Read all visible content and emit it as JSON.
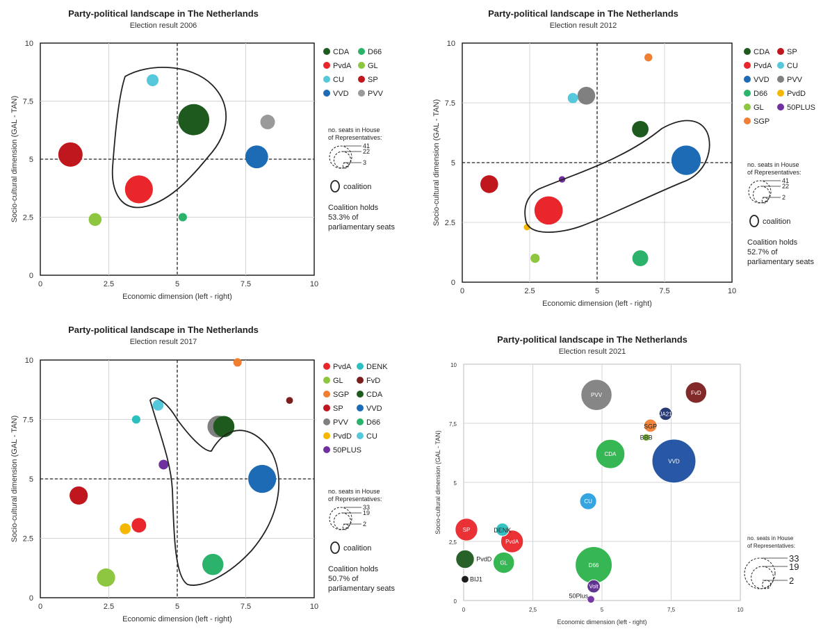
{
  "chart_data": [
    {
      "type": "scatter",
      "title": "Party-political landscape in The Netherlands",
      "subtitle": "Election result 2006",
      "xlabel": "Economic dimension (left - right)",
      "ylabel": "Socio-cultural dimension (GAL - TAN)",
      "xlim": [
        0,
        10
      ],
      "ylim": [
        0,
        10
      ],
      "xticks": [
        "0",
        "2.5",
        "5",
        "7.5",
        "10"
      ],
      "yticks": [
        "0",
        "2.5",
        "5",
        "7.5",
        "10"
      ],
      "grid": true,
      "legend_position": "right",
      "legend": [
        "CDA",
        "D66",
        "PvdA",
        "GL",
        "CU",
        "SP",
        "VVD",
        "PVV"
      ],
      "size_legend_title_1": "no. seats in House",
      "size_legend_title_2": "of Representatives:",
      "size_legend_values": [
        "41",
        "22",
        "3"
      ],
      "coalition_label": "coalition",
      "coalition_note": [
        "Coalition holds",
        "53.3% of",
        "parliamentary seats"
      ],
      "coalition": [
        "CDA",
        "PvdA",
        "CU"
      ],
      "points": [
        {
          "party": "CDA",
          "x": 5.6,
          "y": 6.7,
          "seats": 41,
          "color": "#1e5a1e"
        },
        {
          "party": "PvdA",
          "x": 3.6,
          "y": 3.7,
          "seats": 33,
          "color": "#e8262b"
        },
        {
          "party": "SP",
          "x": 1.1,
          "y": 5.2,
          "seats": 25,
          "color": "#c0161e"
        },
        {
          "party": "VVD",
          "x": 7.9,
          "y": 5.1,
          "seats": 22,
          "color": "#1c6bb4"
        },
        {
          "party": "PVV",
          "x": 8.3,
          "y": 6.6,
          "seats": 9,
          "color": "#9a9a9a"
        },
        {
          "party": "GL",
          "x": 2.0,
          "y": 2.4,
          "seats": 7,
          "color": "#8dc63f"
        },
        {
          "party": "CU",
          "x": 4.1,
          "y": 8.4,
          "seats": 6,
          "color": "#56c8dc"
        },
        {
          "party": "D66",
          "x": 5.2,
          "y": 2.5,
          "seats": 3,
          "color": "#2bb36b"
        }
      ]
    },
    {
      "type": "scatter",
      "title": "Party-political landscape in The Netherlands",
      "subtitle": "Election result 2012",
      "xlabel": "Economic dimension (left - right)",
      "ylabel": "Socio-cultural dimension (GAL - TAN)",
      "xlim": [
        0,
        10
      ],
      "ylim": [
        0,
        10
      ],
      "xticks": [
        "0",
        "2.5",
        "5",
        "7.5",
        "10"
      ],
      "yticks": [
        "0",
        "2.5",
        "5",
        "7.5",
        "10"
      ],
      "grid": true,
      "legend_position": "right",
      "legend": [
        "CDA",
        "SP",
        "PvdA",
        "CU",
        "VVD",
        "PVV",
        "D66",
        "PvdD",
        "GL",
        "50PLUS",
        "SGP"
      ],
      "size_legend_title_1": "no. seats in House",
      "size_legend_title_2": "of Representatives:",
      "size_legend_values": [
        "41",
        "22",
        "2"
      ],
      "coalition_label": "coalition",
      "coalition_note": [
        "Coalition holds",
        "52.7% of",
        "parliamentary seats"
      ],
      "coalition": [
        "VVD",
        "PvdA"
      ],
      "points": [
        {
          "party": "VVD",
          "x": 8.3,
          "y": 5.1,
          "seats": 41,
          "color": "#1c6bb4"
        },
        {
          "party": "PvdA",
          "x": 3.2,
          "y": 3.0,
          "seats": 38,
          "color": "#e8262b"
        },
        {
          "party": "PVV",
          "x": 4.6,
          "y": 7.8,
          "seats": 15,
          "color": "#808080"
        },
        {
          "party": "SP",
          "x": 1.0,
          "y": 4.1,
          "seats": 15,
          "color": "#c0161e"
        },
        {
          "party": "CDA",
          "x": 6.6,
          "y": 6.4,
          "seats": 13,
          "color": "#1e5a1e"
        },
        {
          "party": "D66",
          "x": 6.6,
          "y": 1.0,
          "seats": 12,
          "color": "#2bb36b"
        },
        {
          "party": "CU",
          "x": 4.1,
          "y": 7.7,
          "seats": 5,
          "color": "#56c8dc"
        },
        {
          "party": "GL",
          "x": 2.7,
          "y": 1.0,
          "seats": 4,
          "color": "#8dc63f"
        },
        {
          "party": "SGP",
          "x": 6.9,
          "y": 9.4,
          "seats": 3,
          "color": "#f07f32"
        },
        {
          "party": "PvdD",
          "x": 2.4,
          "y": 2.3,
          "seats": 2,
          "color": "#f5b800"
        },
        {
          "party": "50PLUS",
          "x": 3.7,
          "y": 4.3,
          "seats": 2,
          "color": "#7030a0"
        }
      ]
    },
    {
      "type": "scatter",
      "title": "Party-political landscape in The Netherlands",
      "subtitle": "Election result 2017",
      "xlabel": "Economic dimension (left - right)",
      "ylabel": "Socio-cultural dimension (GAL - TAN)",
      "xlim": [
        0,
        10
      ],
      "ylim": [
        0,
        10
      ],
      "xticks": [
        "0",
        "2.5",
        "5",
        "7.5",
        "10"
      ],
      "yticks": [
        "0",
        "2.5",
        "5",
        "7.5",
        "10"
      ],
      "grid": true,
      "legend_position": "right",
      "legend": [
        "PvdA",
        "DENK",
        "GL",
        "FvD",
        "SGP",
        "CDA",
        "SP",
        "VVD",
        "PVV",
        "D66",
        "PvdD",
        "CU",
        "50PLUS"
      ],
      "size_legend_title_1": "no. seats in House",
      "size_legend_title_2": "of Representatives:",
      "size_legend_values": [
        "33",
        "19",
        "2"
      ],
      "coalition_label": "coalition",
      "coalition_note": [
        "Coalition holds",
        "50.7% of",
        "parliamentary seats"
      ],
      "coalition": [
        "VVD",
        "CDA",
        "D66",
        "CU"
      ],
      "points": [
        {
          "party": "VVD",
          "x": 8.1,
          "y": 5.0,
          "seats": 33,
          "color": "#1c6bb4"
        },
        {
          "party": "PVV",
          "x": 6.5,
          "y": 7.2,
          "seats": 20,
          "color": "#808080"
        },
        {
          "party": "CDA",
          "x": 6.7,
          "y": 7.2,
          "seats": 19,
          "color": "#1e5a1e"
        },
        {
          "party": "D66",
          "x": 6.3,
          "y": 1.4,
          "seats": 19,
          "color": "#2bb36b"
        },
        {
          "party": "GL",
          "x": 2.4,
          "y": 0.85,
          "seats": 14,
          "color": "#8dc63f"
        },
        {
          "party": "SP",
          "x": 1.4,
          "y": 4.3,
          "seats": 14,
          "color": "#c0161e"
        },
        {
          "party": "PvdA",
          "x": 3.6,
          "y": 3.05,
          "seats": 9,
          "color": "#e8262b"
        },
        {
          "party": "CU",
          "x": 4.3,
          "y": 8.1,
          "seats": 5,
          "color": "#56c8dc"
        },
        {
          "party": "PvdD",
          "x": 3.1,
          "y": 2.9,
          "seats": 5,
          "color": "#f5b800"
        },
        {
          "party": "50PLUS",
          "x": 4.5,
          "y": 5.6,
          "seats": 4,
          "color": "#7030a0"
        },
        {
          "party": "SGP",
          "x": 7.2,
          "y": 9.9,
          "seats": 3,
          "color": "#f07f32"
        },
        {
          "party": "DENK",
          "x": 3.5,
          "y": 7.5,
          "seats": 3,
          "color": "#2bbfbf"
        },
        {
          "party": "FvD",
          "x": 9.1,
          "y": 8.3,
          "seats": 2,
          "color": "#7b1e1e"
        }
      ]
    },
    {
      "type": "scatter",
      "title": "Party-political landscape in The Netherlands",
      "subtitle": "Election result 2021",
      "xlabel": "Economic dimension (left - right)",
      "ylabel": "Socio-cultural dimension (GAL - TAN)",
      "xlim": [
        0,
        10
      ],
      "ylim": [
        0,
        10
      ],
      "xticks": [
        "0",
        "2,5",
        "5",
        "7,5",
        "10"
      ],
      "yticks": [
        "0",
        "2,5",
        "5",
        "7,5",
        "10"
      ],
      "grid": true,
      "size_legend_title_1": "no. seats in House",
      "size_legend_title_2": "of Representatives:",
      "size_legend_values": [
        "33",
        "19",
        "2"
      ],
      "points": [
        {
          "party": "VVD",
          "x": 7.6,
          "y": 5.9,
          "seats": 34,
          "color": "#1c4fa0",
          "label_inside": true
        },
        {
          "party": "D66",
          "x": 4.7,
          "y": 1.5,
          "seats": 24,
          "color": "#2bb34a",
          "label_inside": true
        },
        {
          "party": "PVV",
          "x": 4.8,
          "y": 8.7,
          "seats": 17,
          "color": "#808080",
          "label_inside": true
        },
        {
          "party": "CDA",
          "x": 5.3,
          "y": 6.2,
          "seats": 15,
          "color": "#2bb34a",
          "label_inside": true
        },
        {
          "party": "SP",
          "x": 0.1,
          "y": 3.0,
          "seats": 9,
          "color": "#e8262b",
          "label_inside": true
        },
        {
          "party": "PvdA",
          "x": 1.75,
          "y": 2.5,
          "seats": 9,
          "color": "#e8262b",
          "label_inside": true
        },
        {
          "party": "GL",
          "x": 1.45,
          "y": 1.6,
          "seats": 8,
          "color": "#2bb34a",
          "label_inside": true
        },
        {
          "party": "FvD",
          "x": 8.4,
          "y": 8.8,
          "seats": 8,
          "color": "#7b1e1e",
          "label_inside": true
        },
        {
          "party": "PvdD",
          "x": 0.05,
          "y": 1.75,
          "seats": 6,
          "color": "#1e5a1e",
          "label_inside": false
        },
        {
          "party": "CU",
          "x": 4.5,
          "y": 4.2,
          "seats": 5,
          "color": "#2aa0e0",
          "label_inside": true
        },
        {
          "party": "Volt",
          "x": 4.7,
          "y": 0.6,
          "seats": 3,
          "color": "#5a2a8a",
          "label_inside": true
        },
        {
          "party": "JA21",
          "x": 7.3,
          "y": 7.9,
          "seats": 3,
          "color": "#1c2f6b",
          "label_inside": true
        },
        {
          "party": "SGP",
          "x": 6.75,
          "y": 7.4,
          "seats": 3,
          "color": "#f07f32",
          "label_inside": false
        },
        {
          "party": "DENK",
          "x": 1.4,
          "y": 3.0,
          "seats": 3,
          "color": "#2bbfbf",
          "label_inside": false
        },
        {
          "party": "50Plus",
          "x": 4.6,
          "y": 0.05,
          "seats": 1,
          "color": "#7030a0",
          "label_inside": false
        },
        {
          "party": "BBB",
          "x": 6.6,
          "y": 6.9,
          "seats": 1,
          "color": "#7dbb42",
          "label_inside": false
        },
        {
          "party": "BIJ1",
          "x": 0.05,
          "y": 0.9,
          "seats": 1,
          "color": "#111111",
          "label_inside": false
        }
      ]
    }
  ]
}
